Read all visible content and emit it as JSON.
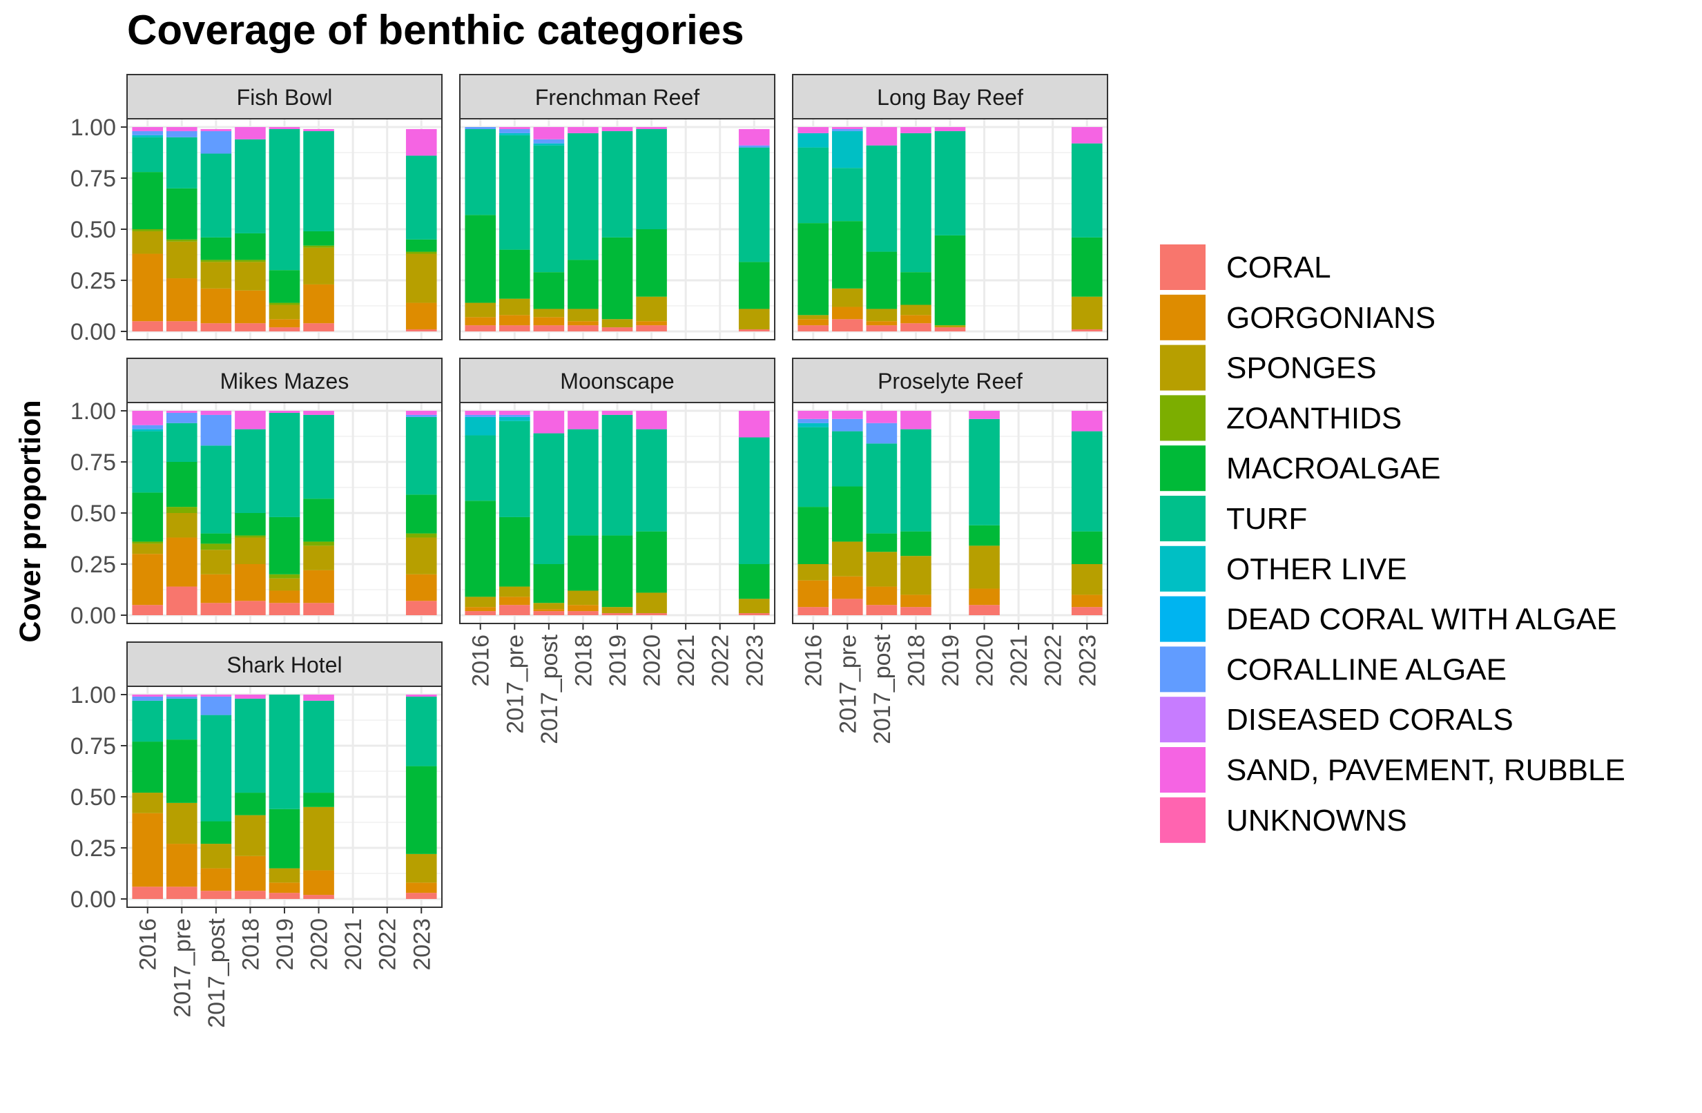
{
  "chart_data": {
    "type": "bar",
    "stacked": true,
    "faceted": true,
    "title": "Coverage of benthic categories",
    "xlabel": "",
    "ylabel": "Cover proportion",
    "ylim": [
      0,
      1
    ],
    "yticks": [
      "0.00",
      "0.25",
      "0.50",
      "0.75",
      "1.00"
    ],
    "grid": true,
    "legend_position": "right",
    "categories": [
      "2016",
      "2017_pre",
      "2017_post",
      "2018",
      "2019",
      "2020",
      "2021",
      "2022",
      "2023"
    ],
    "series": [
      {
        "name": "CORAL",
        "color": "#F8766D"
      },
      {
        "name": "GORGONIANS",
        "color": "#DE8C00"
      },
      {
        "name": "SPONGES",
        "color": "#B79F00"
      },
      {
        "name": "ZOANTHIDS",
        "color": "#7CAE00"
      },
      {
        "name": "MACROALGAE",
        "color": "#00BA38"
      },
      {
        "name": "TURF",
        "color": "#00C08B"
      },
      {
        "name": "OTHER LIVE",
        "color": "#00BFC4"
      },
      {
        "name": "DEAD CORAL WITH ALGAE",
        "color": "#00B4F0"
      },
      {
        "name": "CORALLINE ALGAE",
        "color": "#619CFF"
      },
      {
        "name": "DISEASED CORALS",
        "color": "#C77CFF"
      },
      {
        "name": "SAND, PAVEMENT, RUBBLE",
        "color": "#F564E3"
      },
      {
        "name": "UNKNOWNS",
        "color": "#FF64B0"
      }
    ],
    "facets": [
      {
        "name": "Fish Bowl",
        "bars": {
          "2016": [
            0.05,
            0.33,
            0.11,
            0.01,
            0.28,
            0.17,
            0.01,
            0.0,
            0.02,
            0.0,
            0.02,
            0.0
          ],
          "2017_pre": [
            0.05,
            0.21,
            0.18,
            0.01,
            0.25,
            0.25,
            0.0,
            0.0,
            0.03,
            0.0,
            0.02,
            0.0
          ],
          "2017_post": [
            0.04,
            0.17,
            0.13,
            0.01,
            0.11,
            0.41,
            0.0,
            0.0,
            0.11,
            0.0,
            0.01,
            0.0
          ],
          "2018": [
            0.04,
            0.16,
            0.14,
            0.01,
            0.13,
            0.46,
            0.0,
            0.0,
            0.0,
            0.0,
            0.06,
            0.0
          ],
          "2019": [
            0.02,
            0.04,
            0.07,
            0.01,
            0.16,
            0.69,
            0.0,
            0.0,
            0.0,
            0.0,
            0.01,
            0.0
          ],
          "2020": [
            0.04,
            0.19,
            0.18,
            0.01,
            0.07,
            0.49,
            0.0,
            0.0,
            0.0,
            0.0,
            0.01,
            0.0
          ],
          "2023": [
            0.01,
            0.13,
            0.24,
            0.01,
            0.06,
            0.41,
            0.0,
            0.0,
            0.0,
            0.0,
            0.13,
            0.0
          ]
        }
      },
      {
        "name": "Frenchman Reef",
        "bars": {
          "2016": [
            0.03,
            0.04,
            0.07,
            0.0,
            0.43,
            0.42,
            0.0,
            0.0,
            0.01,
            0.0,
            0.0,
            0.0
          ],
          "2017_pre": [
            0.03,
            0.05,
            0.08,
            0.0,
            0.24,
            0.56,
            0.01,
            0.0,
            0.02,
            0.0,
            0.01,
            0.0
          ],
          "2017_post": [
            0.03,
            0.04,
            0.04,
            0.0,
            0.18,
            0.62,
            0.01,
            0.0,
            0.02,
            0.0,
            0.06,
            0.0
          ],
          "2018": [
            0.03,
            0.02,
            0.06,
            0.0,
            0.24,
            0.62,
            0.0,
            0.0,
            0.0,
            0.0,
            0.03,
            0.0
          ],
          "2019": [
            0.02,
            0.0,
            0.04,
            0.0,
            0.4,
            0.52,
            0.0,
            0.0,
            0.0,
            0.0,
            0.02,
            0.0
          ],
          "2020": [
            0.03,
            0.02,
            0.12,
            0.0,
            0.33,
            0.49,
            0.0,
            0.0,
            0.0,
            0.0,
            0.01,
            0.0
          ],
          "2023": [
            0.01,
            0.0,
            0.1,
            0.0,
            0.23,
            0.56,
            0.0,
            0.0,
            0.01,
            0.0,
            0.08,
            0.0
          ]
        }
      },
      {
        "name": "Long Bay Reef",
        "bars": {
          "2016": [
            0.03,
            0.03,
            0.02,
            0.0,
            0.45,
            0.37,
            0.07,
            0.0,
            0.0,
            0.0,
            0.03,
            0.0
          ],
          "2017_pre": [
            0.06,
            0.06,
            0.09,
            0.0,
            0.33,
            0.26,
            0.18,
            0.0,
            0.01,
            0.0,
            0.01,
            0.0
          ],
          "2017_post": [
            0.03,
            0.02,
            0.06,
            0.0,
            0.28,
            0.52,
            0.0,
            0.0,
            0.0,
            0.0,
            0.09,
            0.0
          ],
          "2018": [
            0.04,
            0.04,
            0.05,
            0.0,
            0.16,
            0.68,
            0.0,
            0.0,
            0.0,
            0.0,
            0.03,
            0.0
          ],
          "2019": [
            0.02,
            0.0,
            0.01,
            0.0,
            0.44,
            0.51,
            0.0,
            0.0,
            0.0,
            0.0,
            0.02,
            0.0
          ],
          "2023": [
            0.01,
            0.0,
            0.16,
            0.0,
            0.29,
            0.46,
            0.0,
            0.0,
            0.0,
            0.0,
            0.08,
            0.0
          ]
        }
      },
      {
        "name": "Mikes Mazes",
        "bars": {
          "2016": [
            0.05,
            0.25,
            0.05,
            0.01,
            0.24,
            0.3,
            0.01,
            0.0,
            0.02,
            0.0,
            0.07,
            0.0
          ],
          "2017_pre": [
            0.14,
            0.24,
            0.12,
            0.03,
            0.22,
            0.19,
            0.0,
            0.0,
            0.05,
            0.0,
            0.01,
            0.0
          ],
          "2017_post": [
            0.06,
            0.14,
            0.12,
            0.03,
            0.05,
            0.43,
            0.0,
            0.0,
            0.15,
            0.0,
            0.02,
            0.0
          ],
          "2018": [
            0.07,
            0.18,
            0.13,
            0.01,
            0.11,
            0.41,
            0.0,
            0.0,
            0.0,
            0.0,
            0.09,
            0.0
          ],
          "2019": [
            0.06,
            0.06,
            0.06,
            0.02,
            0.28,
            0.51,
            0.0,
            0.0,
            0.0,
            0.0,
            0.01,
            0.0
          ],
          "2020": [
            0.06,
            0.16,
            0.12,
            0.02,
            0.21,
            0.41,
            0.0,
            0.0,
            0.0,
            0.0,
            0.02,
            0.0
          ],
          "2023": [
            0.07,
            0.13,
            0.18,
            0.02,
            0.19,
            0.38,
            0.0,
            0.0,
            0.01,
            0.0,
            0.02,
            0.0
          ]
        }
      },
      {
        "name": "Moonscape",
        "bars": {
          "2016": [
            0.02,
            0.02,
            0.05,
            0.0,
            0.47,
            0.32,
            0.09,
            0.0,
            0.01,
            0.0,
            0.02,
            0.0
          ],
          "2017_pre": [
            0.05,
            0.04,
            0.05,
            0.0,
            0.34,
            0.47,
            0.02,
            0.0,
            0.01,
            0.0,
            0.02,
            0.0
          ],
          "2017_post": [
            0.02,
            0.01,
            0.03,
            0.0,
            0.19,
            0.64,
            0.0,
            0.0,
            0.0,
            0.0,
            0.11,
            0.0
          ],
          "2018": [
            0.02,
            0.03,
            0.07,
            0.0,
            0.27,
            0.52,
            0.0,
            0.0,
            0.0,
            0.0,
            0.09,
            0.0
          ],
          "2019": [
            0.01,
            0.0,
            0.03,
            0.0,
            0.35,
            0.59,
            0.0,
            0.0,
            0.0,
            0.0,
            0.02,
            0.0
          ],
          "2020": [
            0.01,
            0.0,
            0.1,
            0.0,
            0.3,
            0.5,
            0.0,
            0.0,
            0.0,
            0.0,
            0.09,
            0.0
          ],
          "2023": [
            0.01,
            0.0,
            0.07,
            0.0,
            0.17,
            0.62,
            0.0,
            0.0,
            0.0,
            0.0,
            0.13,
            0.0
          ]
        }
      },
      {
        "name": "Proselyte Reef",
        "bars": {
          "2016": [
            0.04,
            0.13,
            0.08,
            0.0,
            0.28,
            0.39,
            0.02,
            0.0,
            0.02,
            0.0,
            0.04,
            0.0
          ],
          "2017_pre": [
            0.08,
            0.11,
            0.17,
            0.0,
            0.27,
            0.27,
            0.0,
            0.0,
            0.06,
            0.0,
            0.04,
            0.0
          ],
          "2017_post": [
            0.05,
            0.09,
            0.17,
            0.0,
            0.09,
            0.44,
            0.0,
            0.0,
            0.1,
            0.0,
            0.06,
            0.0
          ],
          "2018": [
            0.04,
            0.06,
            0.19,
            0.0,
            0.12,
            0.5,
            0.0,
            0.0,
            0.0,
            0.0,
            0.09,
            0.0
          ],
          "2020": [
            0.05,
            0.08,
            0.21,
            0.0,
            0.1,
            0.52,
            0.0,
            0.0,
            0.0,
            0.0,
            0.04,
            0.0
          ],
          "2023": [
            0.04,
            0.06,
            0.15,
            0.0,
            0.16,
            0.49,
            0.0,
            0.0,
            0.0,
            0.0,
            0.1,
            0.0
          ]
        }
      },
      {
        "name": "Shark Hotel",
        "bars": {
          "2016": [
            0.06,
            0.36,
            0.1,
            0.0,
            0.25,
            0.2,
            0.0,
            0.0,
            0.02,
            0.0,
            0.01,
            0.0
          ],
          "2017_pre": [
            0.06,
            0.21,
            0.2,
            0.0,
            0.31,
            0.2,
            0.0,
            0.0,
            0.01,
            0.0,
            0.01,
            0.0
          ],
          "2017_post": [
            0.04,
            0.11,
            0.12,
            0.0,
            0.11,
            0.52,
            0.0,
            0.0,
            0.09,
            0.0,
            0.01,
            0.0
          ],
          "2018": [
            0.04,
            0.17,
            0.2,
            0.0,
            0.11,
            0.46,
            0.0,
            0.0,
            0.0,
            0.0,
            0.02,
            0.0
          ],
          "2019": [
            0.03,
            0.05,
            0.07,
            0.0,
            0.29,
            0.56,
            0.0,
            0.0,
            0.0,
            0.0,
            0.0,
            0.0
          ],
          "2020": [
            0.02,
            0.12,
            0.31,
            0.0,
            0.07,
            0.45,
            0.0,
            0.0,
            0.0,
            0.0,
            0.03,
            0.0
          ],
          "2023": [
            0.03,
            0.05,
            0.14,
            0.0,
            0.43,
            0.34,
            0.0,
            0.0,
            0.0,
            0.0,
            0.01,
            0.0
          ]
        }
      }
    ]
  }
}
